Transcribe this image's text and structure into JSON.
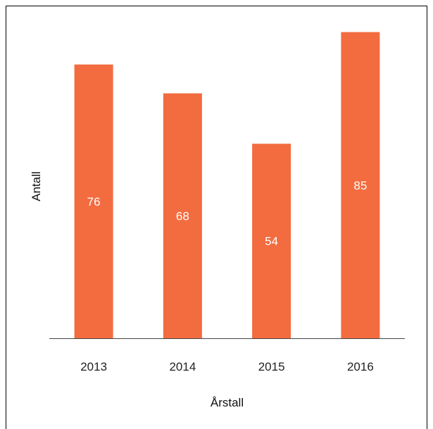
{
  "chart_data": {
    "type": "bar",
    "categories": [
      "2013",
      "2014",
      "2015",
      "2016"
    ],
    "values": [
      76,
      68,
      54,
      85
    ],
    "data_labels": [
      "76",
      "68",
      "54",
      "85"
    ],
    "title": "",
    "xlabel": "Årstall",
    "ylabel": "Antall",
    "ylim": [
      0,
      90
    ],
    "grid": false,
    "legend": "none",
    "bar_color": "#F26C40",
    "axis_color": "#444444"
  }
}
